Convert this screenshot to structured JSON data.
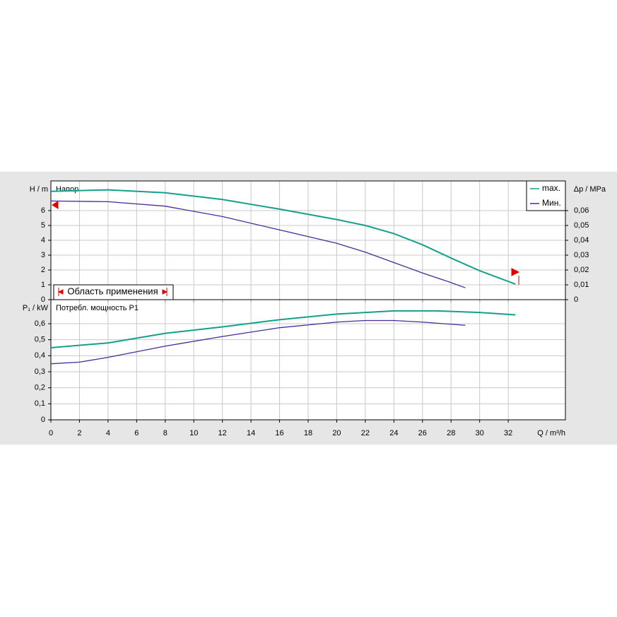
{
  "chart_data": [
    {
      "type": "line",
      "ylabel": "H / m",
      "y2label": "Δp / MPa",
      "annotation": "Напор",
      "range_label": "Область применения",
      "xlim": [
        0,
        36
      ],
      "xticks": [
        0,
        2,
        4,
        6,
        8,
        10,
        12,
        14,
        16,
        18,
        20,
        22,
        24,
        26,
        28,
        30,
        32
      ],
      "ylim": [
        0,
        8
      ],
      "yticks": [
        0,
        1,
        2,
        3,
        4,
        5,
        6
      ],
      "y2lim": [
        0,
        0.08
      ],
      "y2ticks": [
        0,
        {
          "value": 0.01,
          "label": "0,01"
        },
        {
          "value": 0.02,
          "label": "0,02"
        },
        {
          "value": 0.03,
          "label": "0,03"
        },
        {
          "value": 0.04,
          "label": "0,04"
        },
        {
          "value": 0.05,
          "label": "0,05"
        },
        {
          "value": 0.06,
          "label": "0,06"
        }
      ],
      "grid": true,
      "legend": "upper right",
      "series": [
        {
          "name": "max.",
          "color": "#14a08a",
          "x": [
            0,
            4,
            8,
            12,
            16,
            20,
            22,
            24,
            26,
            28,
            30,
            32.5
          ],
          "values": [
            7.3,
            7.4,
            7.2,
            6.75,
            6.1,
            5.4,
            5.0,
            4.45,
            3.7,
            2.8,
            1.95,
            1.05
          ]
        },
        {
          "name": "Мин.",
          "color": "#4a2a9c",
          "x": [
            0,
            4,
            8,
            12,
            16,
            20,
            22,
            24,
            26,
            28,
            29
          ],
          "values": [
            6.65,
            6.6,
            6.3,
            5.6,
            4.7,
            3.8,
            3.2,
            2.5,
            1.8,
            1.15,
            0.8
          ]
        }
      ]
    },
    {
      "type": "line",
      "ylabel": "P₁ / kW",
      "xlabel": "Q / m³/h",
      "annotation": "Потребл. мощность P1",
      "xlim": [
        0,
        36
      ],
      "xticks": [
        0,
        2,
        4,
        6,
        8,
        10,
        12,
        14,
        16,
        18,
        20,
        22,
        24,
        26,
        28,
        30,
        32
      ],
      "ylim": [
        0,
        0.75
      ],
      "yticks": [
        0,
        {
          "value": 0.1,
          "label": "0,1"
        },
        {
          "value": 0.2,
          "label": "0,2"
        },
        {
          "value": 0.3,
          "label": "0,3"
        },
        {
          "value": 0.4,
          "label": "0,4"
        },
        {
          "value": 0.5,
          "label": "0,5"
        },
        {
          "value": 0.6,
          "label": "0,6"
        }
      ],
      "grid": true,
      "series": [
        {
          "color": "#14a08a",
          "x": [
            0,
            4,
            8,
            12,
            16,
            20,
            24,
            27,
            30,
            32.5
          ],
          "values": [
            0.45,
            0.48,
            0.54,
            0.58,
            0.625,
            0.66,
            0.68,
            0.68,
            0.67,
            0.655
          ]
        },
        {
          "color": "#4a2a9c",
          "x": [
            0,
            2,
            4,
            8,
            12,
            16,
            20,
            22,
            24,
            26,
            29
          ],
          "values": [
            0.35,
            0.36,
            0.39,
            0.46,
            0.52,
            0.575,
            0.61,
            0.62,
            0.62,
            0.61,
            0.59
          ]
        }
      ]
    }
  ]
}
